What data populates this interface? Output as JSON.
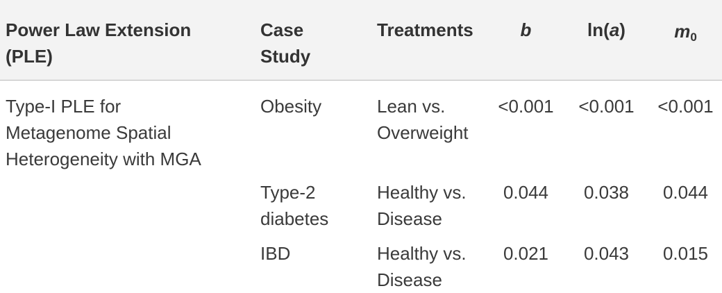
{
  "table": {
    "headers": {
      "method_line1": "Power Law Extension",
      "method_line2": "(PLE)",
      "case_line1": "Case",
      "case_line2": "Study",
      "treatments": "Treatments",
      "b": "b",
      "lna_prefix": "ln(",
      "lna_var": "a",
      "lna_suffix": ")",
      "m0_base": "m",
      "m0_sub": "0"
    },
    "method": {
      "line1": "Type-I PLE for",
      "line2": "Metagenome Spatial",
      "line3": "Heterogeneity with MGA"
    },
    "rows": [
      {
        "case_line1": "Obesity",
        "case_line2": "",
        "treat_line1": "Lean vs.",
        "treat_line2": "Overweight",
        "b": "<0.001",
        "lna": "<0.001",
        "m0": "<0.001"
      },
      {
        "case_line1": "Type-2",
        "case_line2": "diabetes",
        "treat_line1": "Healthy vs.",
        "treat_line2": "Disease",
        "b": "0.044",
        "lna": "0.038",
        "m0": "0.044"
      },
      {
        "case_line1": "IBD",
        "case_line2": "",
        "treat_line1": "Healthy vs.",
        "treat_line2": "Disease",
        "b": "0.021",
        "lna": "0.043",
        "m0": "0.015"
      }
    ]
  }
}
